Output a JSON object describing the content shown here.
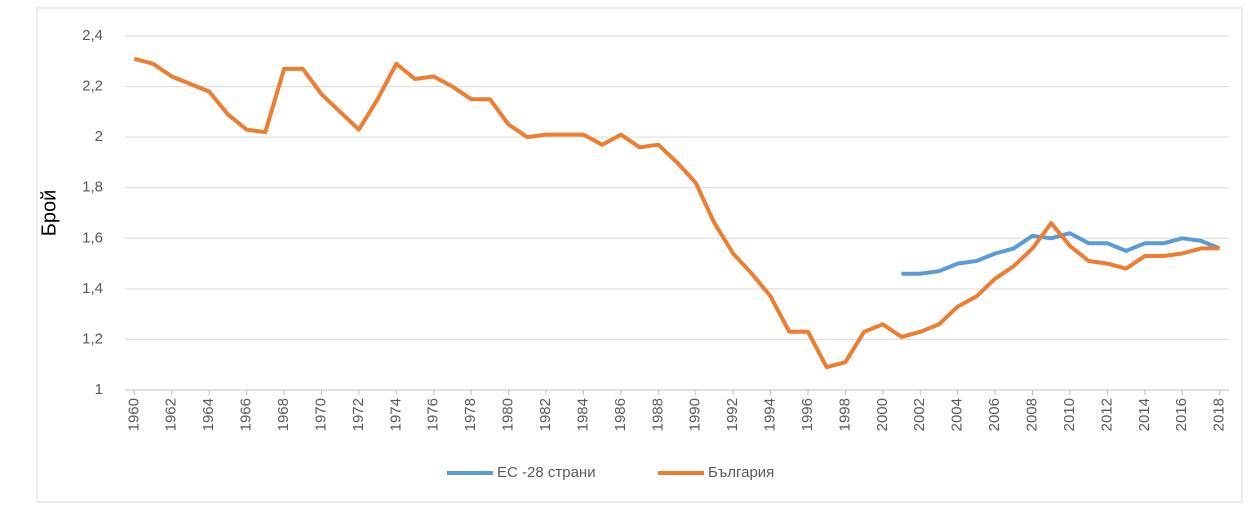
{
  "chart_data": {
    "type": "line",
    "ylabel": "Брой",
    "x": [
      1960,
      1961,
      1962,
      1963,
      1964,
      1965,
      1966,
      1967,
      1968,
      1969,
      1970,
      1971,
      1972,
      1973,
      1974,
      1975,
      1976,
      1977,
      1978,
      1979,
      1980,
      1981,
      1982,
      1983,
      1984,
      1985,
      1986,
      1987,
      1988,
      1989,
      1990,
      1991,
      1992,
      1993,
      1994,
      1995,
      1996,
      1997,
      1998,
      1999,
      2000,
      2001,
      2002,
      2003,
      2004,
      2005,
      2006,
      2007,
      2008,
      2009,
      2010,
      2011,
      2012,
      2013,
      2014,
      2015,
      2016,
      2017,
      2018
    ],
    "xlim": [
      1959.5,
      2018.5
    ],
    "xticks": [
      1960,
      1962,
      1964,
      1966,
      1968,
      1970,
      1972,
      1974,
      1976,
      1978,
      1980,
      1982,
      1984,
      1986,
      1988,
      1990,
      1992,
      1994,
      1996,
      1998,
      2000,
      2002,
      2004,
      2006,
      2008,
      2010,
      2012,
      2014,
      2016,
      2018
    ],
    "ylim": [
      1,
      2.4
    ],
    "yticks": [
      1,
      {
        "value": 1.2,
        "label": "1,2"
      },
      {
        "value": 1.4,
        "label": "1,4"
      },
      {
        "value": 1.6,
        "label": "1,6"
      },
      {
        "value": 1.8,
        "label": "1,8"
      },
      2,
      {
        "value": 2.2,
        "label": "2,2"
      },
      {
        "value": 2.4,
        "label": "2,4"
      }
    ],
    "grid": true,
    "legend": "bottom",
    "series": [
      {
        "name": "ЕС -28 страни",
        "color": "#5b9bd5",
        "values": [
          null,
          null,
          null,
          null,
          null,
          null,
          null,
          null,
          null,
          null,
          null,
          null,
          null,
          null,
          null,
          null,
          null,
          null,
          null,
          null,
          null,
          null,
          null,
          null,
          null,
          null,
          null,
          null,
          null,
          null,
          null,
          null,
          null,
          null,
          null,
          null,
          null,
          null,
          null,
          null,
          null,
          1.46,
          1.46,
          1.47,
          1.5,
          1.51,
          1.54,
          1.56,
          1.61,
          1.6,
          1.62,
          1.58,
          1.58,
          1.55,
          1.58,
          1.58,
          1.6,
          1.59,
          1.56
        ]
      },
      {
        "name": "България",
        "color": "#ed7d31",
        "values": [
          2.31,
          2.29,
          2.24,
          2.21,
          2.18,
          2.09,
          2.03,
          2.02,
          2.27,
          2.27,
          2.17,
          2.1,
          2.03,
          2.15,
          2.29,
          2.23,
          2.24,
          2.2,
          2.15,
          2.15,
          2.05,
          2.0,
          2.01,
          2.01,
          2.01,
          1.97,
          2.01,
          1.96,
          1.97,
          1.9,
          1.82,
          1.66,
          1.54,
          1.46,
          1.37,
          1.23,
          1.23,
          1.09,
          1.11,
          1.23,
          1.26,
          1.21,
          1.23,
          1.26,
          1.33,
          1.37,
          1.44,
          1.49,
          1.56,
          1.66,
          1.57,
          1.51,
          1.5,
          1.48,
          1.53,
          1.53,
          1.54,
          1.56,
          1.56
        ]
      }
    ]
  }
}
